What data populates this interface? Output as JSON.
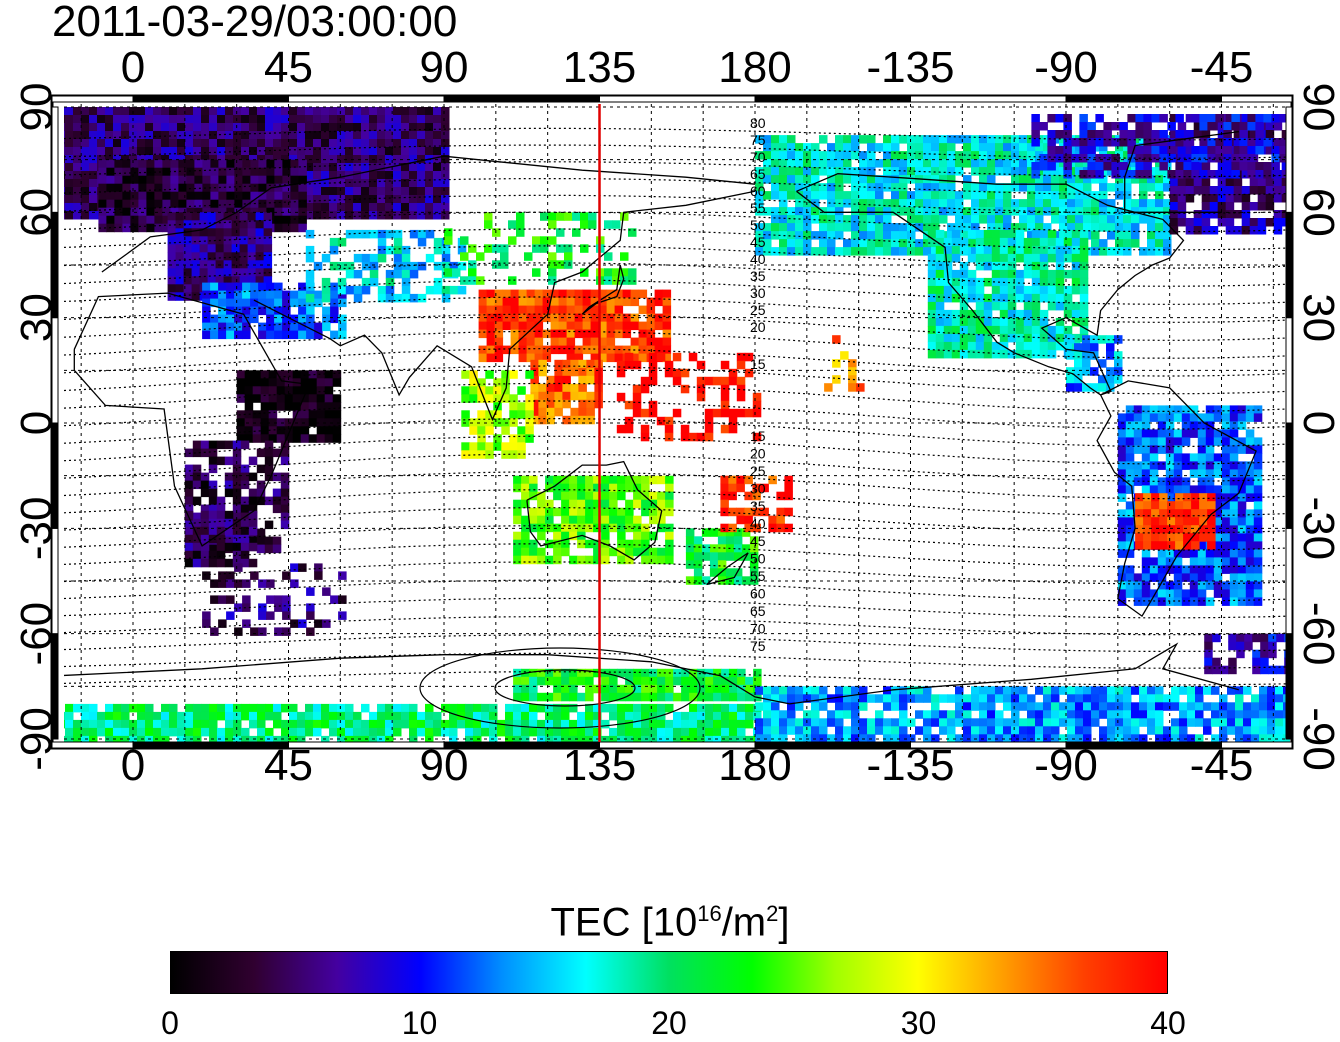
{
  "timestamp": "2011-03-29/03:00:00",
  "map": {
    "lon_ticks": [
      "0",
      "45",
      "90",
      "135",
      "180",
      "-135",
      "-90",
      "-45"
    ],
    "lat_ticks": [
      "90",
      "60",
      "30",
      "0",
      "-30",
      "-60",
      "-90"
    ],
    "marker_longitude": 135,
    "contour_labels": {
      "north": [
        "80",
        "75",
        "70",
        "65",
        "60",
        "55",
        "50",
        "45",
        "40",
        "35",
        "30",
        "25",
        "20",
        "15"
      ],
      "south": [
        "15",
        "20",
        "25",
        "30",
        "35",
        "40",
        "45",
        "50",
        "55",
        "60",
        "65",
        "70",
        "75"
      ]
    }
  },
  "colorbar": {
    "title_prefix": "TEC  [10",
    "title_exp1": "16",
    "title_mid": "/m",
    "title_exp2": "2",
    "title_suffix": "]",
    "ticks": [
      "0",
      "10",
      "20",
      "30",
      "40"
    ],
    "range": [
      0,
      40
    ],
    "gradient": [
      "#000000",
      "#300030",
      "#4400a0",
      "#0000ff",
      "#0090ff",
      "#00ffff",
      "#00e060",
      "#00ff00",
      "#a0ff00",
      "#ffff00",
      "#ffa000",
      "#ff4000",
      "#ff0000"
    ]
  }
}
